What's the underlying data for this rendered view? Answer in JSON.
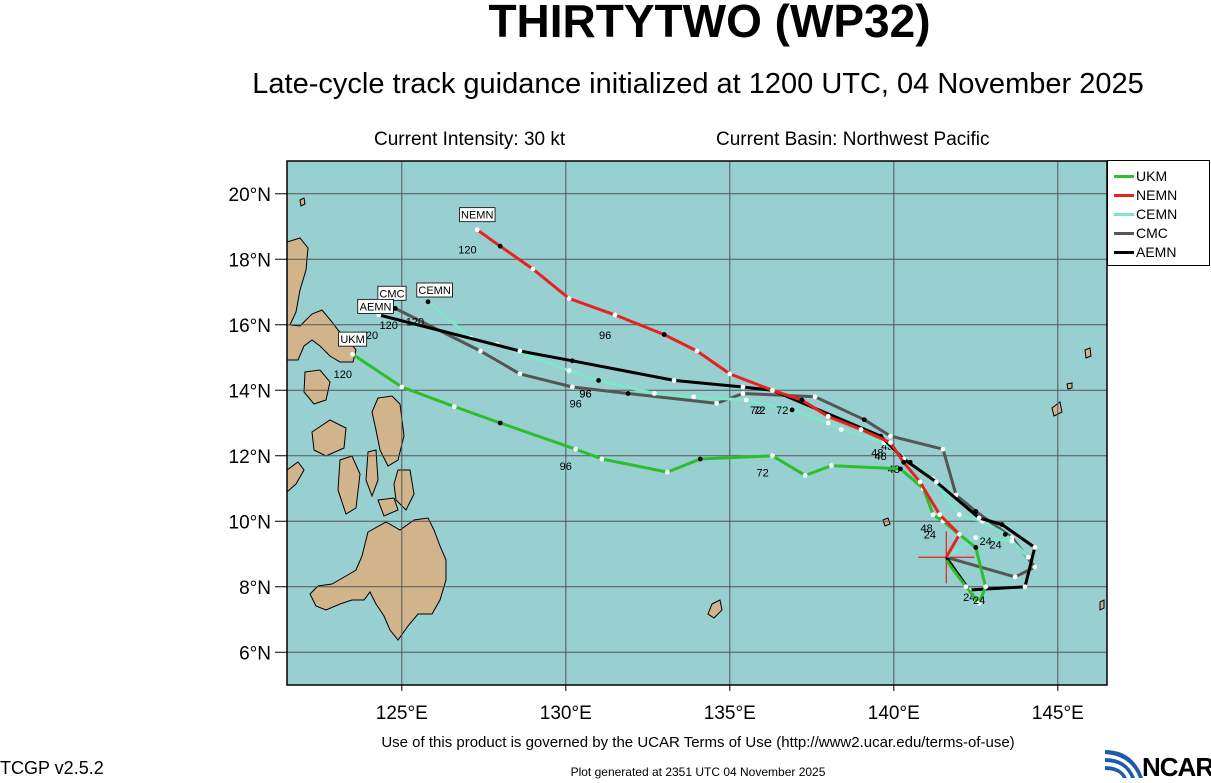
{
  "header": {
    "title": "THIRTYTWO (WP32)",
    "subtitle": "Late-cycle track guidance initialized at 1200 UTC, 04 November 2025",
    "current_intensity": "Current Intensity: 30 kt",
    "current_basin": "Current Basin: Northwest Pacific"
  },
  "map": {
    "lon_range": [
      121.5,
      146.5
    ],
    "lat_range": [
      5.0,
      21.0
    ],
    "ocean_color": "#98cfd0",
    "land_color": "#d2b48c",
    "lon_ticks": [
      {
        "value": 125,
        "label": "125°E"
      },
      {
        "value": 130,
        "label": "130°E"
      },
      {
        "value": 135,
        "label": "135°E"
      },
      {
        "value": 140,
        "label": "140°E"
      },
      {
        "value": 145,
        "label": "145°E"
      }
    ],
    "lat_ticks": [
      {
        "value": 6,
        "label": "6°N"
      },
      {
        "value": 8,
        "label": "8°N"
      },
      {
        "value": 10,
        "label": "10°N"
      },
      {
        "value": 12,
        "label": "12°N"
      },
      {
        "value": 14,
        "label": "14°N"
      },
      {
        "value": 16,
        "label": "16°N"
      },
      {
        "value": 18,
        "label": "18°N"
      },
      {
        "value": 20,
        "label": "20°N"
      }
    ],
    "current_position": {
      "lon": 141.6,
      "lat": 8.9
    }
  },
  "chart_data": {
    "type": "line",
    "x_axis": "Longitude (°E)",
    "y_axis": "Latitude (°N)",
    "grid": true,
    "legend_placement": "right",
    "series": [
      {
        "name": "UKM",
        "color": "#2dbe2d",
        "points": [
          [
            141.6,
            8.8
          ],
          [
            142.2,
            8.0
          ],
          [
            142.6,
            7.5
          ],
          [
            142.8,
            8.0
          ],
          [
            142.5,
            9.2
          ],
          [
            141.5,
            10.0
          ],
          [
            141.2,
            10.2
          ],
          [
            140.9,
            11.0
          ],
          [
            140.2,
            11.6
          ],
          [
            138.1,
            11.7
          ],
          [
            137.3,
            11.4
          ],
          [
            136.3,
            12.0
          ],
          [
            134.1,
            11.9
          ],
          [
            133.1,
            11.5
          ],
          [
            131.1,
            11.9
          ],
          [
            130.3,
            12.2
          ],
          [
            128.0,
            13.0
          ],
          [
            126.6,
            13.5
          ],
          [
            125.0,
            14.1
          ],
          [
            123.5,
            15.1
          ]
        ],
        "labels": [
          {
            "lon": 142.6,
            "lat": 7.9,
            "text": "24"
          },
          {
            "lon": 141.1,
            "lat": 9.9,
            "text": "24"
          },
          {
            "lon": 141.0,
            "lat": 10.1,
            "text": "48"
          },
          {
            "lon": 136.0,
            "lat": 11.8,
            "text": "72"
          },
          {
            "lon": 130.0,
            "lat": 12.0,
            "text": "96"
          },
          {
            "lon": 123.2,
            "lat": 14.8,
            "text": "120"
          }
        ],
        "end_label": "UKM",
        "end_label_pos": {
          "lon": 123.5,
          "lat": 15.5
        }
      },
      {
        "name": "NEMN",
        "color": "#e8221e",
        "points": [
          [
            141.6,
            8.9
          ],
          [
            142.0,
            9.6
          ],
          [
            141.4,
            10.2
          ],
          [
            140.8,
            11.2
          ],
          [
            140.3,
            11.8
          ],
          [
            139.9,
            12.4
          ],
          [
            139.0,
            12.8
          ],
          [
            138.0,
            13.2
          ],
          [
            137.2,
            13.7
          ],
          [
            136.3,
            14.0
          ],
          [
            135.0,
            14.5
          ],
          [
            134.0,
            15.2
          ],
          [
            133.0,
            15.7
          ],
          [
            131.5,
            16.3
          ],
          [
            130.1,
            16.8
          ],
          [
            129.0,
            17.7
          ],
          [
            128.0,
            18.4
          ],
          [
            127.3,
            18.9
          ]
        ],
        "labels": [
          {
            "lon": 139.5,
            "lat": 12.4,
            "text": "48"
          },
          {
            "lon": 136.6,
            "lat": 13.7,
            "text": "72"
          },
          {
            "lon": 131.2,
            "lat": 16.0,
            "text": "96"
          },
          {
            "lon": 127.0,
            "lat": 18.6,
            "text": "120"
          }
        ],
        "end_label": "NEMN",
        "end_label_pos": {
          "lon": 127.3,
          "lat": 19.3
        }
      },
      {
        "name": "CEMN",
        "color": "#7fe5c8",
        "points": [
          [
            141.6,
            8.9
          ],
          [
            142.5,
            9.5
          ],
          [
            143.6,
            9.4
          ],
          [
            144.1,
            8.9
          ],
          [
            143.4,
            9.6
          ],
          [
            142.7,
            10.0
          ],
          [
            142.0,
            10.2
          ],
          [
            141.2,
            11.3
          ],
          [
            140.5,
            11.8
          ],
          [
            139.7,
            12.4
          ],
          [
            138.4,
            12.8
          ],
          [
            138.0,
            13.0
          ],
          [
            136.9,
            13.4
          ],
          [
            135.5,
            13.7
          ],
          [
            133.9,
            13.8
          ],
          [
            132.7,
            13.9
          ],
          [
            131.0,
            14.3
          ],
          [
            130.1,
            14.6
          ],
          [
            127.9,
            15.4
          ],
          [
            127.1,
            15.6
          ],
          [
            125.8,
            16.7
          ]
        ],
        "labels": [
          {
            "lon": 142.8,
            "lat": 9.7,
            "text": "24"
          },
          {
            "lon": 139.6,
            "lat": 12.3,
            "text": "48"
          },
          {
            "lon": 135.9,
            "lat": 13.7,
            "text": "72"
          },
          {
            "lon": 130.6,
            "lat": 14.2,
            "text": "96"
          },
          {
            "lon": 125.4,
            "lat": 16.4,
            "text": "120"
          }
        ],
        "end_label": "CEMN",
        "end_label_pos": {
          "lon": 126.0,
          "lat": 17.0
        }
      },
      {
        "name": "CMC",
        "color": "#555555",
        "points": [
          [
            141.6,
            8.9
          ],
          [
            143.7,
            8.3
          ],
          [
            144.3,
            8.6
          ],
          [
            143.6,
            9.5
          ],
          [
            142.5,
            10.3
          ],
          [
            141.9,
            10.8
          ],
          [
            141.5,
            12.2
          ],
          [
            139.9,
            12.6
          ],
          [
            139.1,
            13.1
          ],
          [
            137.6,
            13.8
          ],
          [
            135.4,
            13.9
          ],
          [
            134.6,
            13.6
          ],
          [
            131.9,
            13.9
          ],
          [
            130.2,
            14.1
          ],
          [
            128.6,
            14.5
          ],
          [
            127.4,
            15.2
          ],
          [
            124.8,
            16.5
          ]
        ],
        "labels": [
          {
            "lon": 143.1,
            "lat": 9.6,
            "text": "24"
          },
          {
            "lon": 139.8,
            "lat": 12.6,
            "text": "48"
          },
          {
            "lon": 135.8,
            "lat": 13.7,
            "text": "72"
          },
          {
            "lon": 130.3,
            "lat": 13.9,
            "text": "96"
          },
          {
            "lon": 124.6,
            "lat": 16.3,
            "text": "120"
          }
        ],
        "end_label": "CMC",
        "end_label_pos": {
          "lon": 124.7,
          "lat": 16.9
        }
      },
      {
        "name": "AEMN",
        "color": "#000000",
        "points": [
          [
            141.6,
            8.9
          ],
          [
            142.3,
            7.9
          ],
          [
            144.0,
            8.0
          ],
          [
            144.3,
            9.2
          ],
          [
            143.3,
            9.9
          ],
          [
            142.6,
            10.1
          ],
          [
            141.3,
            11.2
          ],
          [
            140.3,
            11.9
          ],
          [
            139.6,
            12.6
          ],
          [
            136.3,
            14.0
          ],
          [
            135.4,
            14.1
          ],
          [
            133.3,
            14.3
          ],
          [
            130.2,
            14.9
          ],
          [
            128.6,
            15.2
          ],
          [
            124.3,
            16.3
          ]
        ],
        "labels": [
          {
            "lon": 142.3,
            "lat": 8.0,
            "text": "24"
          },
          {
            "lon": 140.0,
            "lat": 11.9,
            "text": "48"
          },
          {
            "lon": 135.9,
            "lat": 13.7,
            "text": "72"
          },
          {
            "lon": 130.6,
            "lat": 14.2,
            "text": "96"
          },
          {
            "lon": 124.0,
            "lat": 16.0,
            "text": "120"
          }
        ],
        "end_label": "AEMN",
        "end_label_pos": {
          "lon": 124.2,
          "lat": 16.5
        }
      }
    ]
  },
  "legend": {
    "items": [
      {
        "label": "UKM",
        "color": "#2dbe2d"
      },
      {
        "label": "NEMN",
        "color": "#e8221e"
      },
      {
        "label": "CEMN",
        "color": "#7fe5c8"
      },
      {
        "label": "CMC",
        "color": "#555555"
      },
      {
        "label": "AEMN",
        "color": "#000000"
      }
    ]
  },
  "footer": {
    "terms": "Use of this product is governed by the UCAR Terms of Use (http://www2.ucar.edu/terms-of-use)",
    "version": "TCGP v2.5.2",
    "generated": "Plot generated at 2351 UTC   04 November 2025",
    "logo_text": "NCAR"
  }
}
